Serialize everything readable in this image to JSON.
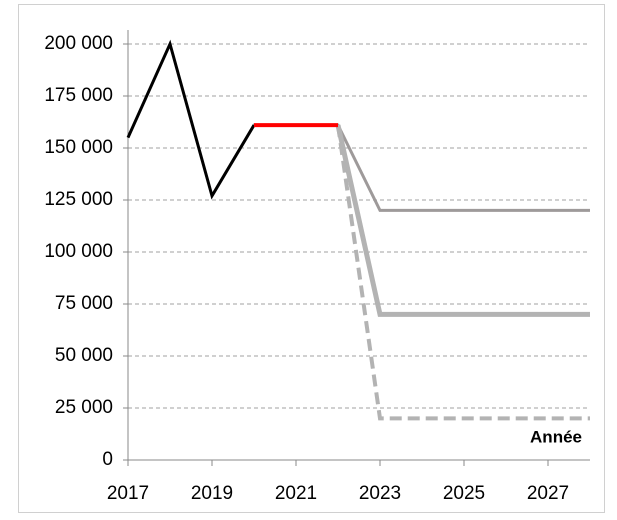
{
  "chart_data": {
    "type": "line",
    "x_label": "Année",
    "x": [
      2017,
      2018,
      2019,
      2020,
      2021,
      2022,
      2023,
      2024,
      2025,
      2026,
      2027,
      2028
    ],
    "series": [
      {
        "color": "#9e9a9a",
        "width": 3,
        "dash": false,
        "values": [
          null,
          null,
          127000,
          161000,
          161000,
          161000,
          120000,
          120000,
          120000,
          120000,
          120000,
          120000
        ]
      },
      {
        "color": "#b3b3b3",
        "width": 5,
        "dash": false,
        "values": [
          null,
          null,
          null,
          null,
          null,
          161000,
          70000,
          70000,
          70000,
          70000,
          70000,
          70000
        ]
      },
      {
        "color": "#b3b3b3",
        "width": 4,
        "dash": true,
        "values": [
          null,
          null,
          null,
          null,
          null,
          161000,
          20000,
          20000,
          20000,
          20000,
          20000,
          20000
        ]
      },
      {
        "color": "#000000",
        "width": 3,
        "dash": false,
        "values": [
          155000,
          200000,
          127000,
          161000,
          null,
          null,
          null,
          null,
          null,
          null,
          null,
          null
        ]
      },
      {
        "color": "#ff0000",
        "width": 4,
        "dash": false,
        "values": [
          null,
          null,
          null,
          161000,
          161000,
          161000,
          null,
          null,
          null,
          null,
          null,
          null
        ]
      }
    ],
    "xlim": [
      2017,
      2028
    ],
    "xticks": [
      2017,
      2019,
      2021,
      2023,
      2025,
      2027
    ],
    "ylim": [
      0,
      200000
    ],
    "yticks": [
      0,
      {
        "value": 25000,
        "label": "25 000"
      },
      {
        "value": 50000,
        "label": "50 000"
      },
      {
        "value": 75000,
        "label": "75 000"
      },
      {
        "value": 100000,
        "label": "100 000"
      },
      {
        "value": 125000,
        "label": "125 000"
      },
      {
        "value": 150000,
        "label": "150 000"
      },
      {
        "value": 175000,
        "label": "175 000"
      },
      {
        "value": 200000,
        "label": "200 000"
      }
    ],
    "grid": true
  }
}
